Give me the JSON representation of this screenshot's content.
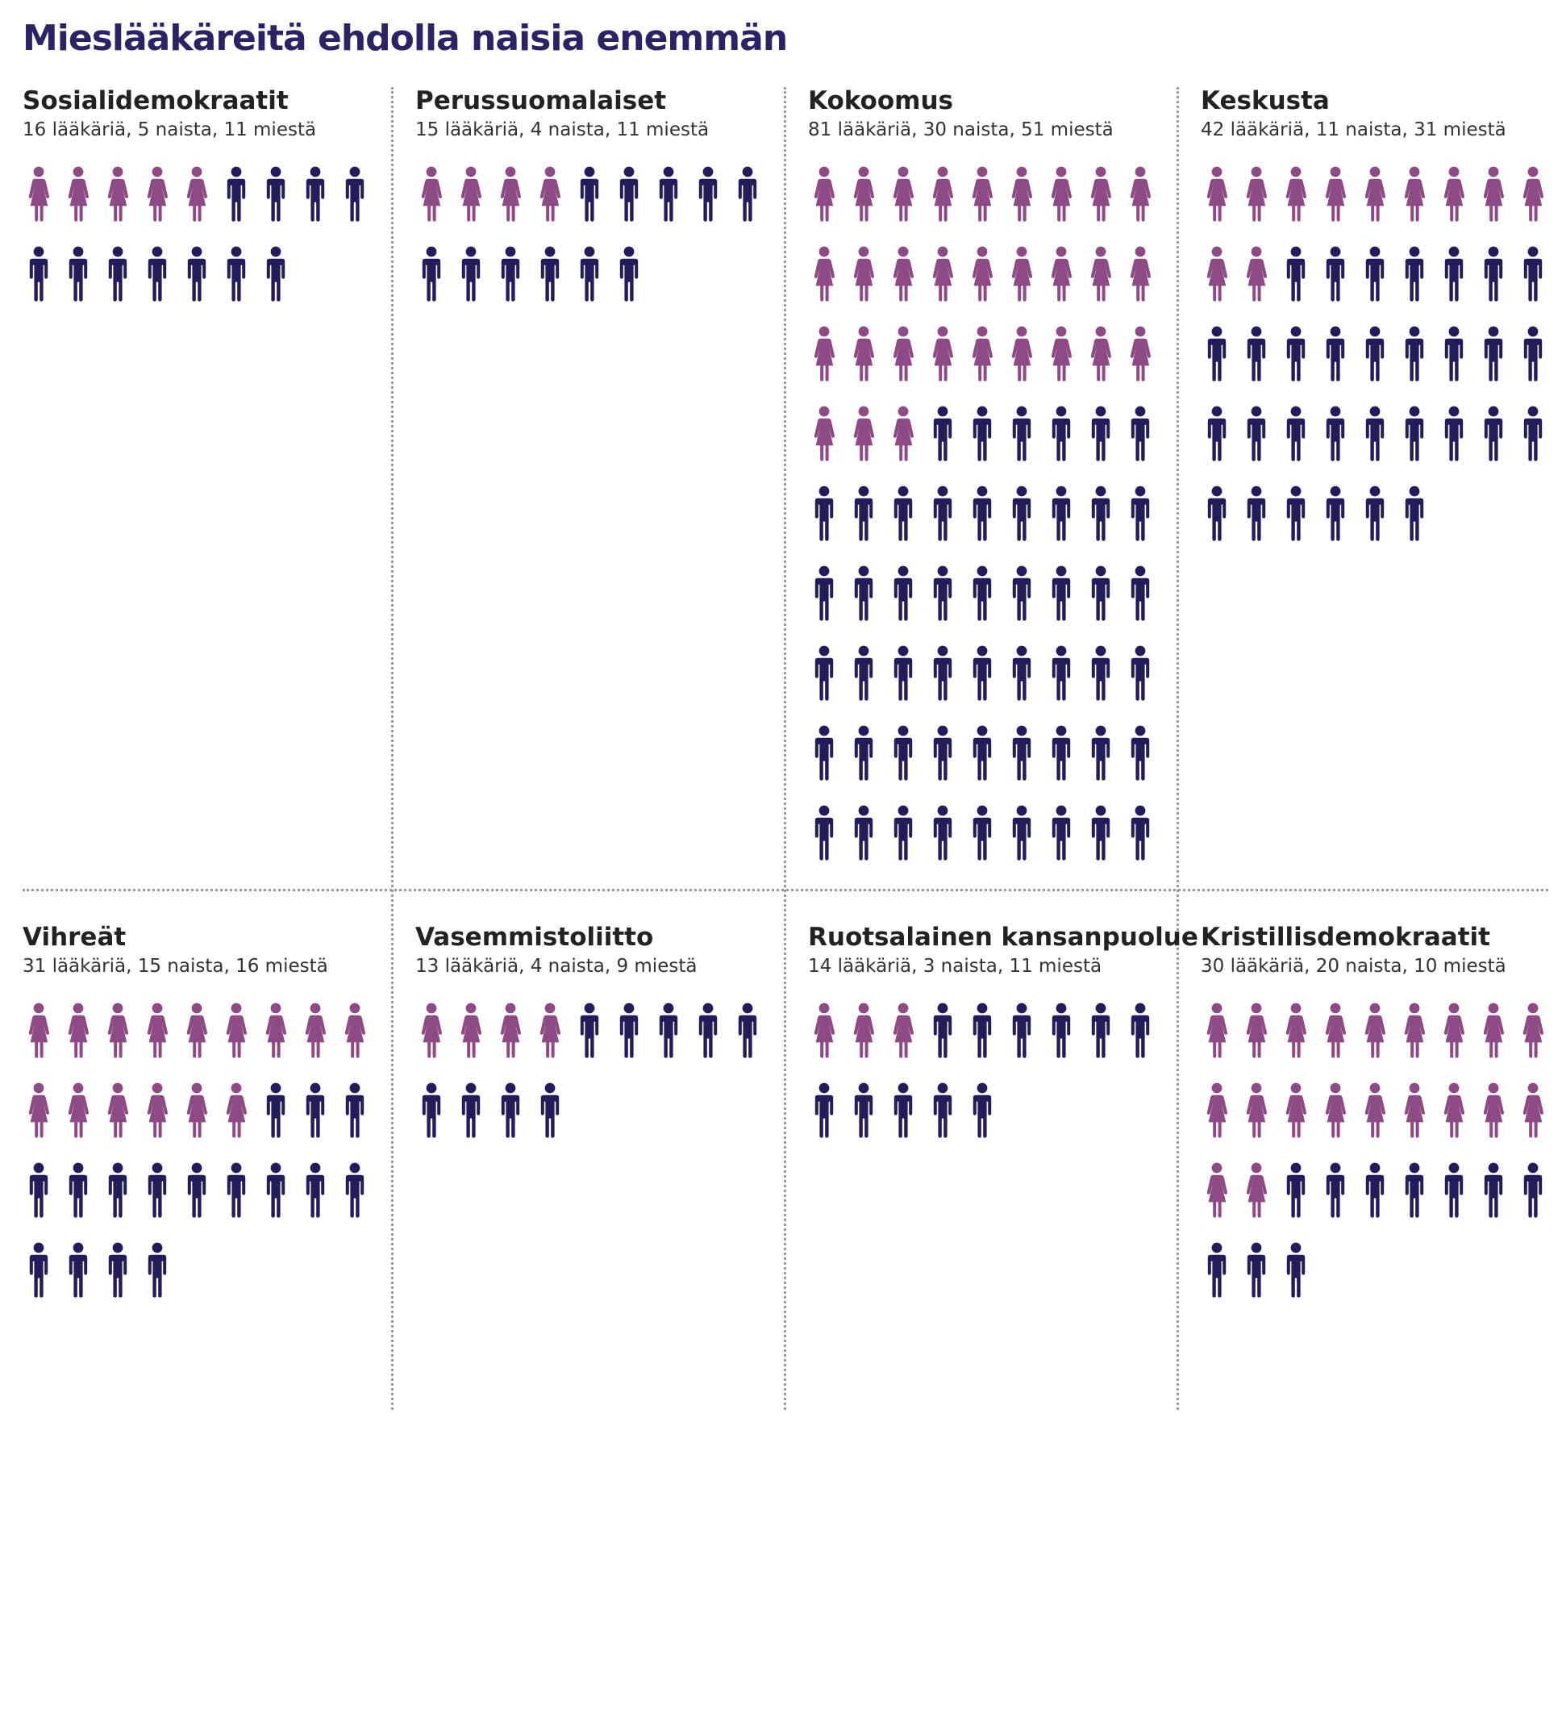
{
  "title": "Mieslääkäreitä ehdolla naisia enemmän",
  "colors": {
    "women": "#8e4a84",
    "men": "#231c5a",
    "title": "#2a2466"
  },
  "icons": {
    "women": "woman-icon",
    "men": "man-icon"
  },
  "chart_data": {
    "type": "pictogram",
    "title": "Mieslääkäreitä ehdolla naisia enemmän",
    "icon_unit": "1 lääkäri",
    "icons_per_row": 9,
    "series": [
      {
        "name": "naisia",
        "color": "#8e4a84"
      },
      {
        "name": "miehiä",
        "color": "#231c5a"
      }
    ],
    "parties": [
      {
        "name": "Sosialidemokraatit",
        "subtitle": "16 lääkäriä, 5 naista, 11 miestä",
        "total": 16,
        "women": 5,
        "men": 11
      },
      {
        "name": "Perussuomalaiset",
        "subtitle": "15 lääkäriä, 4 naista, 11 miestä",
        "total": 15,
        "women": 4,
        "men": 11
      },
      {
        "name": "Kokoomus",
        "subtitle": "81 lääkäriä, 30 naista, 51 miestä",
        "total": 81,
        "women": 30,
        "men": 51
      },
      {
        "name": "Keskusta",
        "subtitle": "42 lääkäriä, 11 naista, 31 miestä",
        "total": 42,
        "women": 11,
        "men": 31
      },
      {
        "name": "Vihreät",
        "subtitle": "31 lääkäriä, 15 naista, 16 miestä",
        "total": 31,
        "women": 15,
        "men": 16
      },
      {
        "name": "Vasemmistoliitto",
        "subtitle": "13 lääkäriä, 4 naista, 9 miestä",
        "total": 13,
        "women": 4,
        "men": 9
      },
      {
        "name": "Ruotsalainen kansanpuolue",
        "subtitle": "14 lääkäriä, 3 naista, 11 miestä",
        "total": 14,
        "women": 3,
        "men": 11
      },
      {
        "name": "Kristillisdemokraatit",
        "subtitle": "30 lääkäriä, 20 naista, 10 miestä",
        "total": 30,
        "women": 20,
        "men": 10
      }
    ]
  }
}
